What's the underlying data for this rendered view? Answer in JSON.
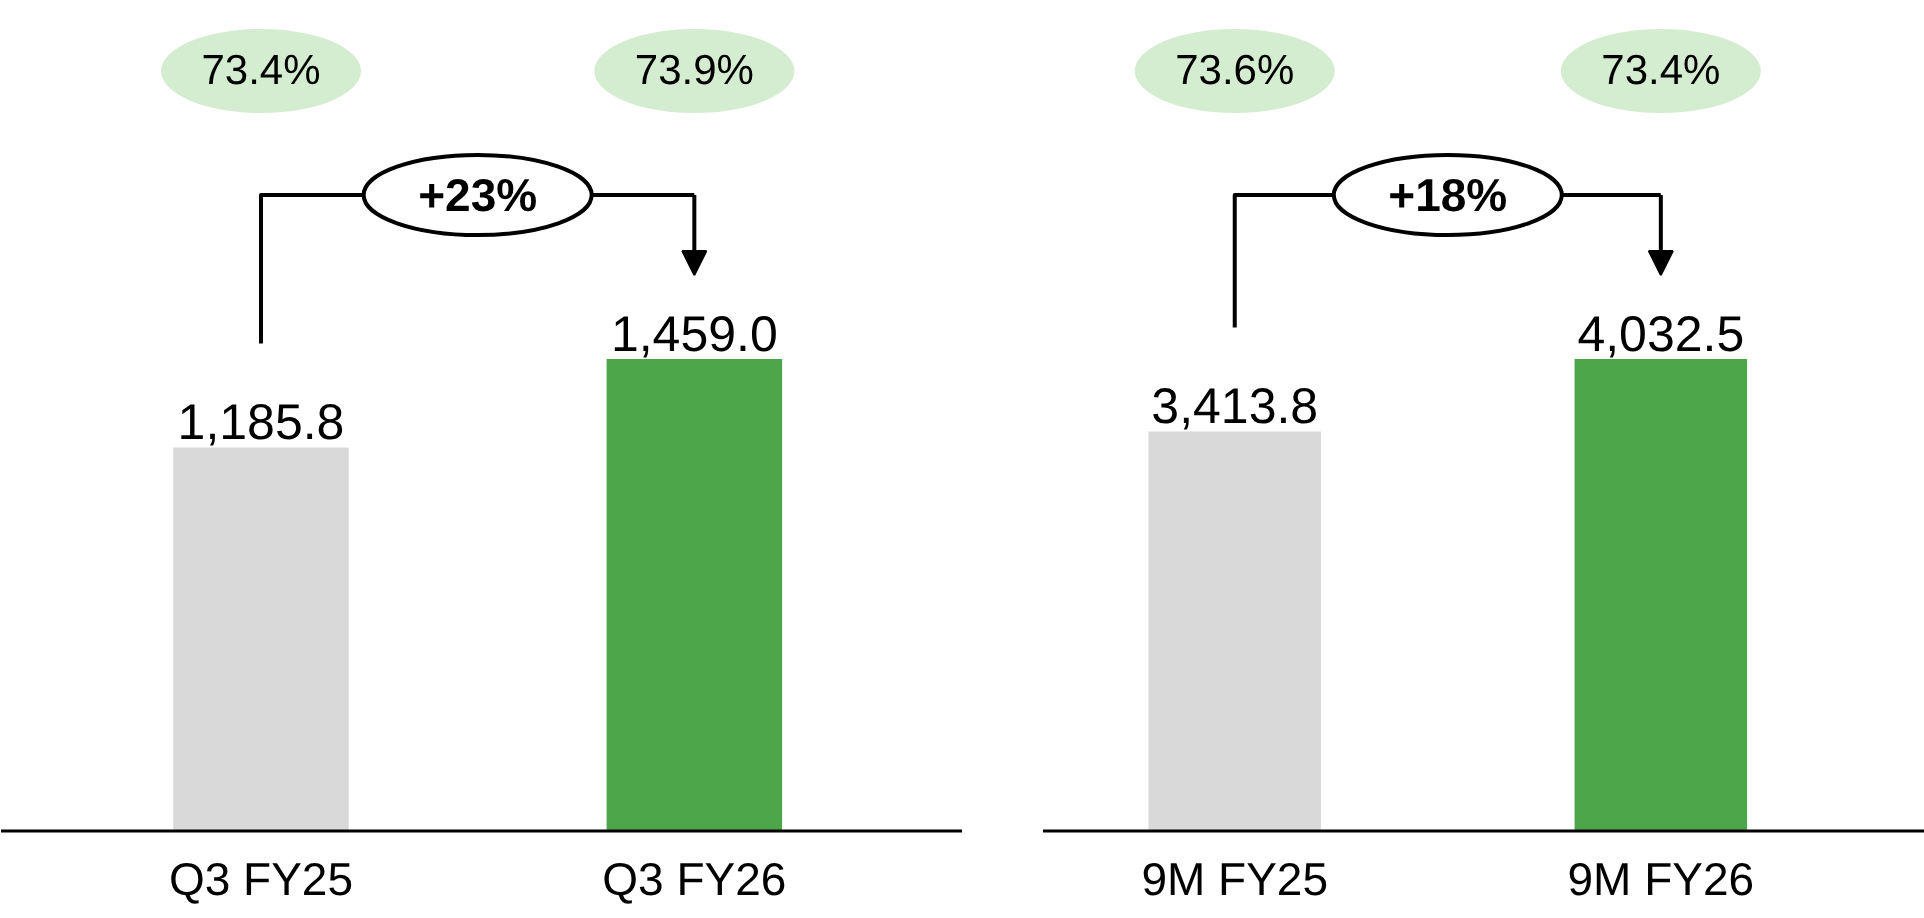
{
  "chart_data": [
    {
      "type": "bar",
      "categories": [
        "Q3 FY25",
        "Q3 FY26"
      ],
      "colors": [
        "#d9d9d9",
        "#4ea64a"
      ],
      "values": [
        1185.8,
        1459.0
      ],
      "value_labels": [
        "1,185.8",
        "1,459.0"
      ],
      "annotations": [
        "73.4%",
        "73.9%",
        "+23%"
      ]
    },
    {
      "type": "bar",
      "categories": [
        "9M FY25",
        "9M FY26"
      ],
      "colors": [
        "#d9d9d9",
        "#4ea64a"
      ],
      "values": [
        3413.8,
        4032.5
      ],
      "value_labels": [
        "3,413.8",
        "4,032.5"
      ],
      "annotations": [
        "73.6%",
        "73.4%",
        "+18%"
      ]
    }
  ]
}
